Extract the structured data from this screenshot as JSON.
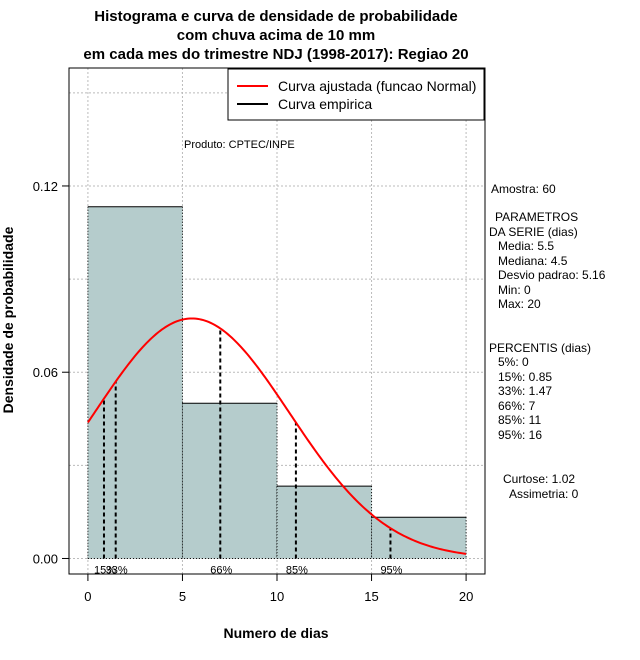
{
  "chart_data": {
    "type": "bar",
    "title_lines": [
      "Histograma e curva de densidade de probabilidade",
      "com chuva acima de 10 mm",
      "em cada mes do trimestre NDJ (1998-2017): Regiao 20"
    ],
    "xlabel": "Numero de dias",
    "ylabel": "Densidade de probabilidade",
    "xlim": [
      -1,
      21
    ],
    "ylim": [
      -0.005,
      0.158
    ],
    "x_ticks": [
      0,
      5,
      10,
      15,
      20
    ],
    "x_tick_labels": [
      "0",
      "5",
      "10",
      "15",
      "20"
    ],
    "y_ticks": [
      0.0,
      0.06,
      0.12
    ],
    "y_tick_labels": [
      "0.00",
      "0.06",
      "0.12"
    ],
    "grid": true,
    "bars": [
      {
        "x0": 0,
        "x1": 5,
        "density": 0.1133
      },
      {
        "x0": 5,
        "x1": 10,
        "density": 0.05
      },
      {
        "x0": 10,
        "x1": 15,
        "density": 0.0233
      },
      {
        "x0": 15,
        "x1": 20,
        "density": 0.0133
      }
    ],
    "fitted_curve": {
      "name": "Curva ajustada (funcao Normal)",
      "mean": 5.5,
      "sd": 5.16,
      "x_range": [
        0,
        20
      ],
      "color": "#ff0000"
    },
    "empirical_curve": {
      "name": "Curva empirica",
      "color": "#000000"
    },
    "bar_color": "#b5cccc",
    "percentile_lines": [
      {
        "label": "15%",
        "x": 0.85
      },
      {
        "label": "33%",
        "x": 1.47
      },
      {
        "label": "66%",
        "x": 7
      },
      {
        "label": "85%",
        "x": 11
      },
      {
        "label": "95%",
        "x": 16
      }
    ],
    "legend_position": "top-right",
    "annotation": "Produto: CPTEC/INPE"
  },
  "stats_panel": {
    "sample": "Amostra: 60",
    "params_title_1": "PARAMETROS",
    "params_title_2": "DA SERIE (dias)",
    "media": "Media: 5.5",
    "mediana": "Mediana: 4.5",
    "desvio": "Desvio padrao: 5.16",
    "min": "Min: 0",
    "max": "Max: 20",
    "percentis_title": "PERCENTIS (dias)",
    "p5": "5%: 0",
    "p15": "15%: 0.85",
    "p33": "33%: 1.47",
    "p66": "66%: 7",
    "p85": "85%: 11",
    "p95": "95%: 16",
    "curtose": "Curtose: 1.02",
    "assimetria": "Assimetria: 0"
  }
}
